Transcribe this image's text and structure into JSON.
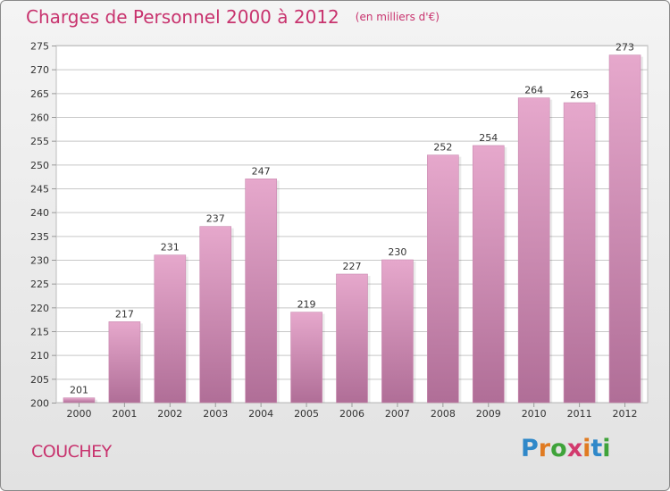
{
  "header": {
    "title": "Charges de Personnel 2000 à 2012",
    "subtitle": "(en milliers d'€)"
  },
  "footer": {
    "commune": "COUCHEY",
    "logo_text": "Proxiti"
  },
  "colors": {
    "title": "#c8336e",
    "bar_top": "#e6a8cc",
    "bar_bottom": "#b06e97",
    "grid": "#c8c8c8",
    "logo_letters": [
      "#2f88c9",
      "#e07b22",
      "#3fa33a",
      "#d23a6e",
      "#e07b22",
      "#2f88c9",
      "#3fa33a"
    ]
  },
  "chart_data": {
    "type": "bar",
    "title": "Charges de Personnel 2000 à 2012",
    "subtitle": "(en milliers d'€)",
    "categories": [
      "2000",
      "2001",
      "2002",
      "2003",
      "2004",
      "2005",
      "2006",
      "2007",
      "2008",
      "2009",
      "2010",
      "2011",
      "2012"
    ],
    "values": [
      201,
      217,
      231,
      237,
      247,
      219,
      227,
      230,
      252,
      254,
      264,
      263,
      273
    ],
    "ylim": [
      200,
      275
    ],
    "yticks": [
      200,
      205,
      210,
      215,
      220,
      225,
      230,
      235,
      240,
      245,
      250,
      255,
      260,
      265,
      270,
      275
    ],
    "grid": true,
    "legend": "none"
  }
}
